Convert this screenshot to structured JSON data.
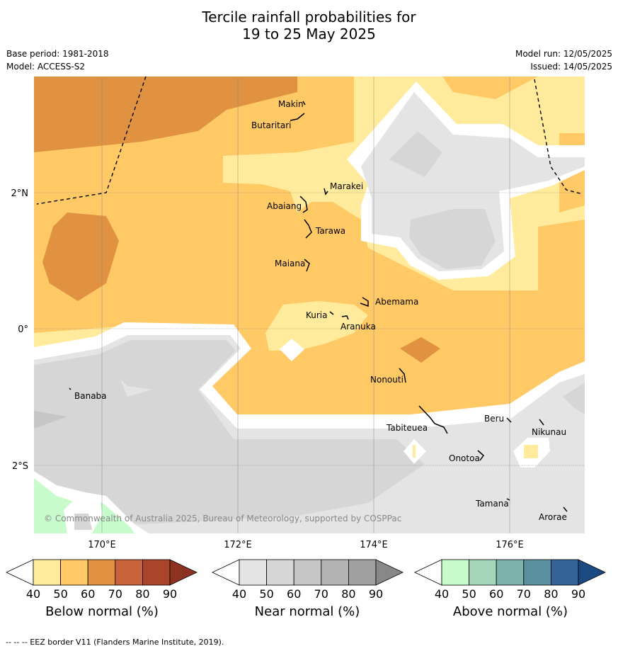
{
  "title": {
    "line1": "Tercile rainfall probabilities for",
    "line2": "19 to 25 May 2025"
  },
  "meta": {
    "base_period": "Base period: 1981-2018",
    "model": "Model: ACCESS-S2",
    "model_run": "Model run: 12/05/2025",
    "issued": "Issued: 14/05/2025"
  },
  "map": {
    "lat_labels": [
      "2°N",
      "0°",
      "2°S"
    ],
    "lon_labels": [
      "170°E",
      "172°E",
      "174°E",
      "176°E"
    ],
    "copyright": "© Commonwealth of Australia 2025, Bureau of Meteorology, supported by COSPPac",
    "islands": [
      "Makin",
      "Butaritari",
      "Marakei",
      "Abaiang",
      "Tarawa",
      "Maiana",
      "Abemama",
      "Kuria",
      "Aranuka",
      "Nonouti",
      "Banaba",
      "Beru",
      "Tabiteuea",
      "Nikunau",
      "Onotoa",
      "Tamana",
      "Arorae"
    ]
  },
  "colorbars": {
    "below": {
      "label": "Below normal (%)",
      "ticks": [
        "40",
        "50",
        "60",
        "70",
        "80",
        "90"
      ],
      "colors": [
        "#ffffff",
        "#ffeb9b",
        "#ffc966",
        "#e09240",
        "#c8623a",
        "#a8452a",
        "#8b3220"
      ]
    },
    "near": {
      "label": "Near normal (%)",
      "ticks": [
        "40",
        "50",
        "60",
        "70",
        "80",
        "90"
      ],
      "colors": [
        "#ffffff",
        "#e4e4e4",
        "#d6d6d6",
        "#c6c6c6",
        "#b3b3b3",
        "#a0a0a0",
        "#888888"
      ]
    },
    "above": {
      "label": "Above normal (%)",
      "ticks": [
        "40",
        "50",
        "60",
        "70",
        "80",
        "90"
      ],
      "colors": [
        "#ffffff",
        "#c8fbcb",
        "#a3d6bb",
        "#7eb3ad",
        "#5a8fa0",
        "#346498",
        "#1a4a80"
      ]
    }
  },
  "footer": "--  --  -- EEZ border V11 (Flanders Marine Institute, 2019)."
}
